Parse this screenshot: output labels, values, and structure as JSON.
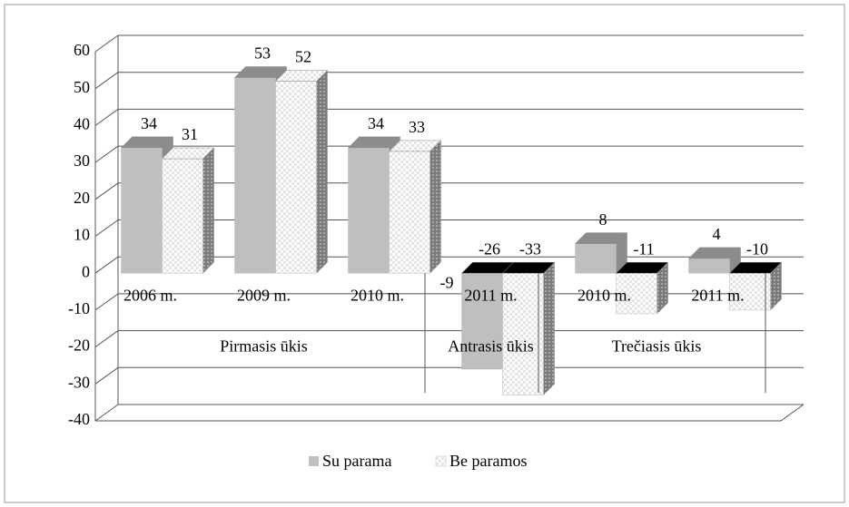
{
  "chart_data": {
    "type": "bar3d",
    "categories": [
      "2006 m.",
      "2009 m.",
      "2010 m.",
      "2011 m.",
      "2010 m.",
      "2011 m."
    ],
    "groups": [
      {
        "label": "Pirmasis ūkis",
        "size": 3
      },
      {
        "label": "Antrasis ūkis",
        "size": 1
      },
      {
        "label": "Trečiasis ūkis",
        "size": 2
      }
    ],
    "series": [
      {
        "name": "Su parama",
        "color": "#bfbfbf",
        "values": [
          34,
          53,
          34,
          -26,
          8,
          4
        ]
      },
      {
        "name": "Be paramos",
        "color": "#f2f2f2",
        "values": [
          31,
          52,
          33,
          -33,
          -11,
          -10
        ]
      }
    ],
    "annotations": [
      "-9"
    ],
    "ylim": [
      -40,
      60
    ],
    "yticks": [
      -40,
      -30,
      -20,
      -10,
      0,
      10,
      20,
      30,
      40,
      50,
      60
    ],
    "grid": true,
    "legend": "bottom"
  }
}
